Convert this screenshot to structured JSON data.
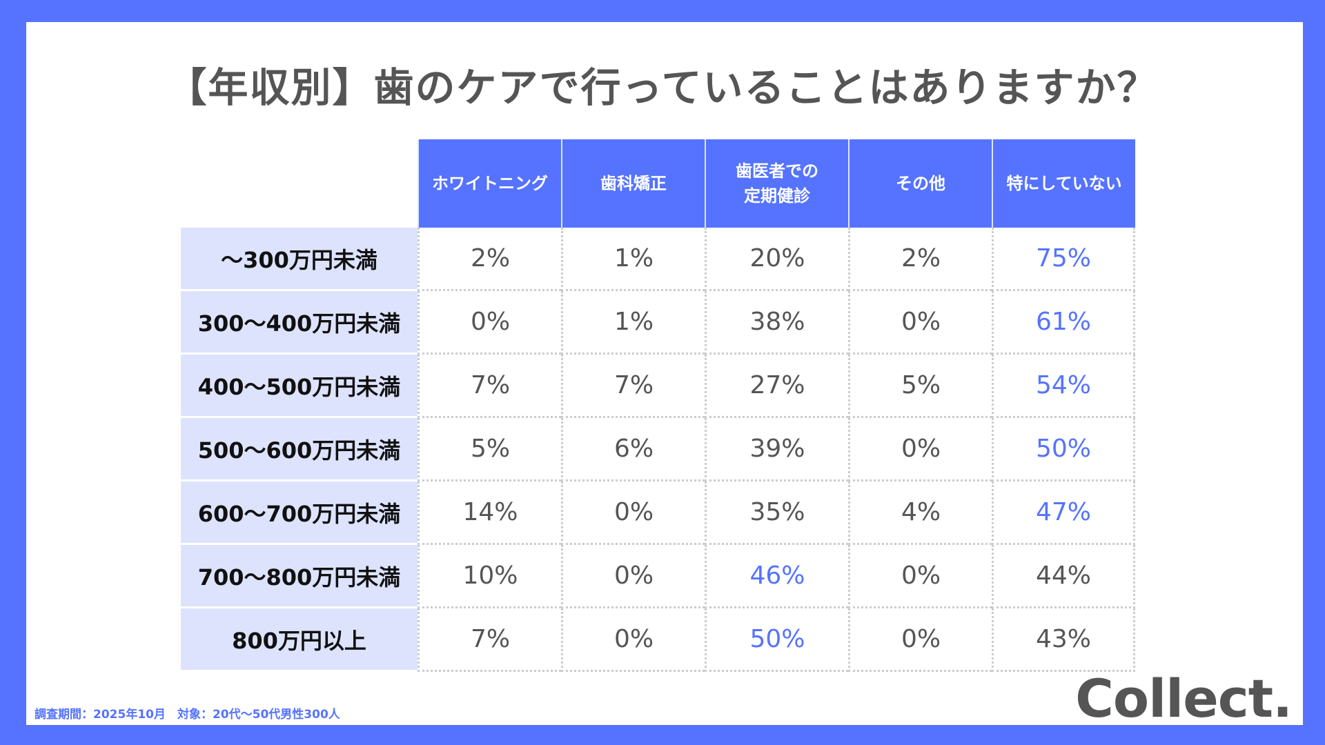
{
  "title": "【年収別】歯のケアで行っていることはありますか？",
  "chart_data": {
    "type": "table",
    "title": "【年収別】歯のケアで行っていることはありますか？",
    "columns": [
      "ホワイトニング",
      "歯科矯正",
      "歯医者での\n定期健診",
      "その他",
      "特にしていない"
    ],
    "rows": [
      {
        "label": "〜300万円未満",
        "values": [
          "2%",
          "1%",
          "20%",
          "2%",
          "75%"
        ],
        "highlight": 4
      },
      {
        "label": "300〜400万円未満",
        "values": [
          "0%",
          "1%",
          "38%",
          "0%",
          "61%"
        ],
        "highlight": 4
      },
      {
        "label": "400〜500万円未満",
        "values": [
          "7%",
          "7%",
          "27%",
          "5%",
          "54%"
        ],
        "highlight": 4
      },
      {
        "label": "500〜600万円未満",
        "values": [
          "5%",
          "6%",
          "39%",
          "0%",
          "50%"
        ],
        "highlight": 4
      },
      {
        "label": "600〜700万円未満",
        "values": [
          "14%",
          "0%",
          "35%",
          "4%",
          "47%"
        ],
        "highlight": 4
      },
      {
        "label": "700〜800万円未満",
        "values": [
          "10%",
          "0%",
          "46%",
          "0%",
          "44%"
        ],
        "highlight": 2
      },
      {
        "label": "800万円以上",
        "values": [
          "7%",
          "0%",
          "50%",
          "0%",
          "43%"
        ],
        "highlight": 2
      }
    ]
  },
  "footer": "調査期間：2025年10月　対象：20代〜50代男性300人",
  "logo": "Collect.",
  "colors": {
    "accent": "#5573ff",
    "label_bg": "#dde3fd",
    "text": "#555555"
  }
}
